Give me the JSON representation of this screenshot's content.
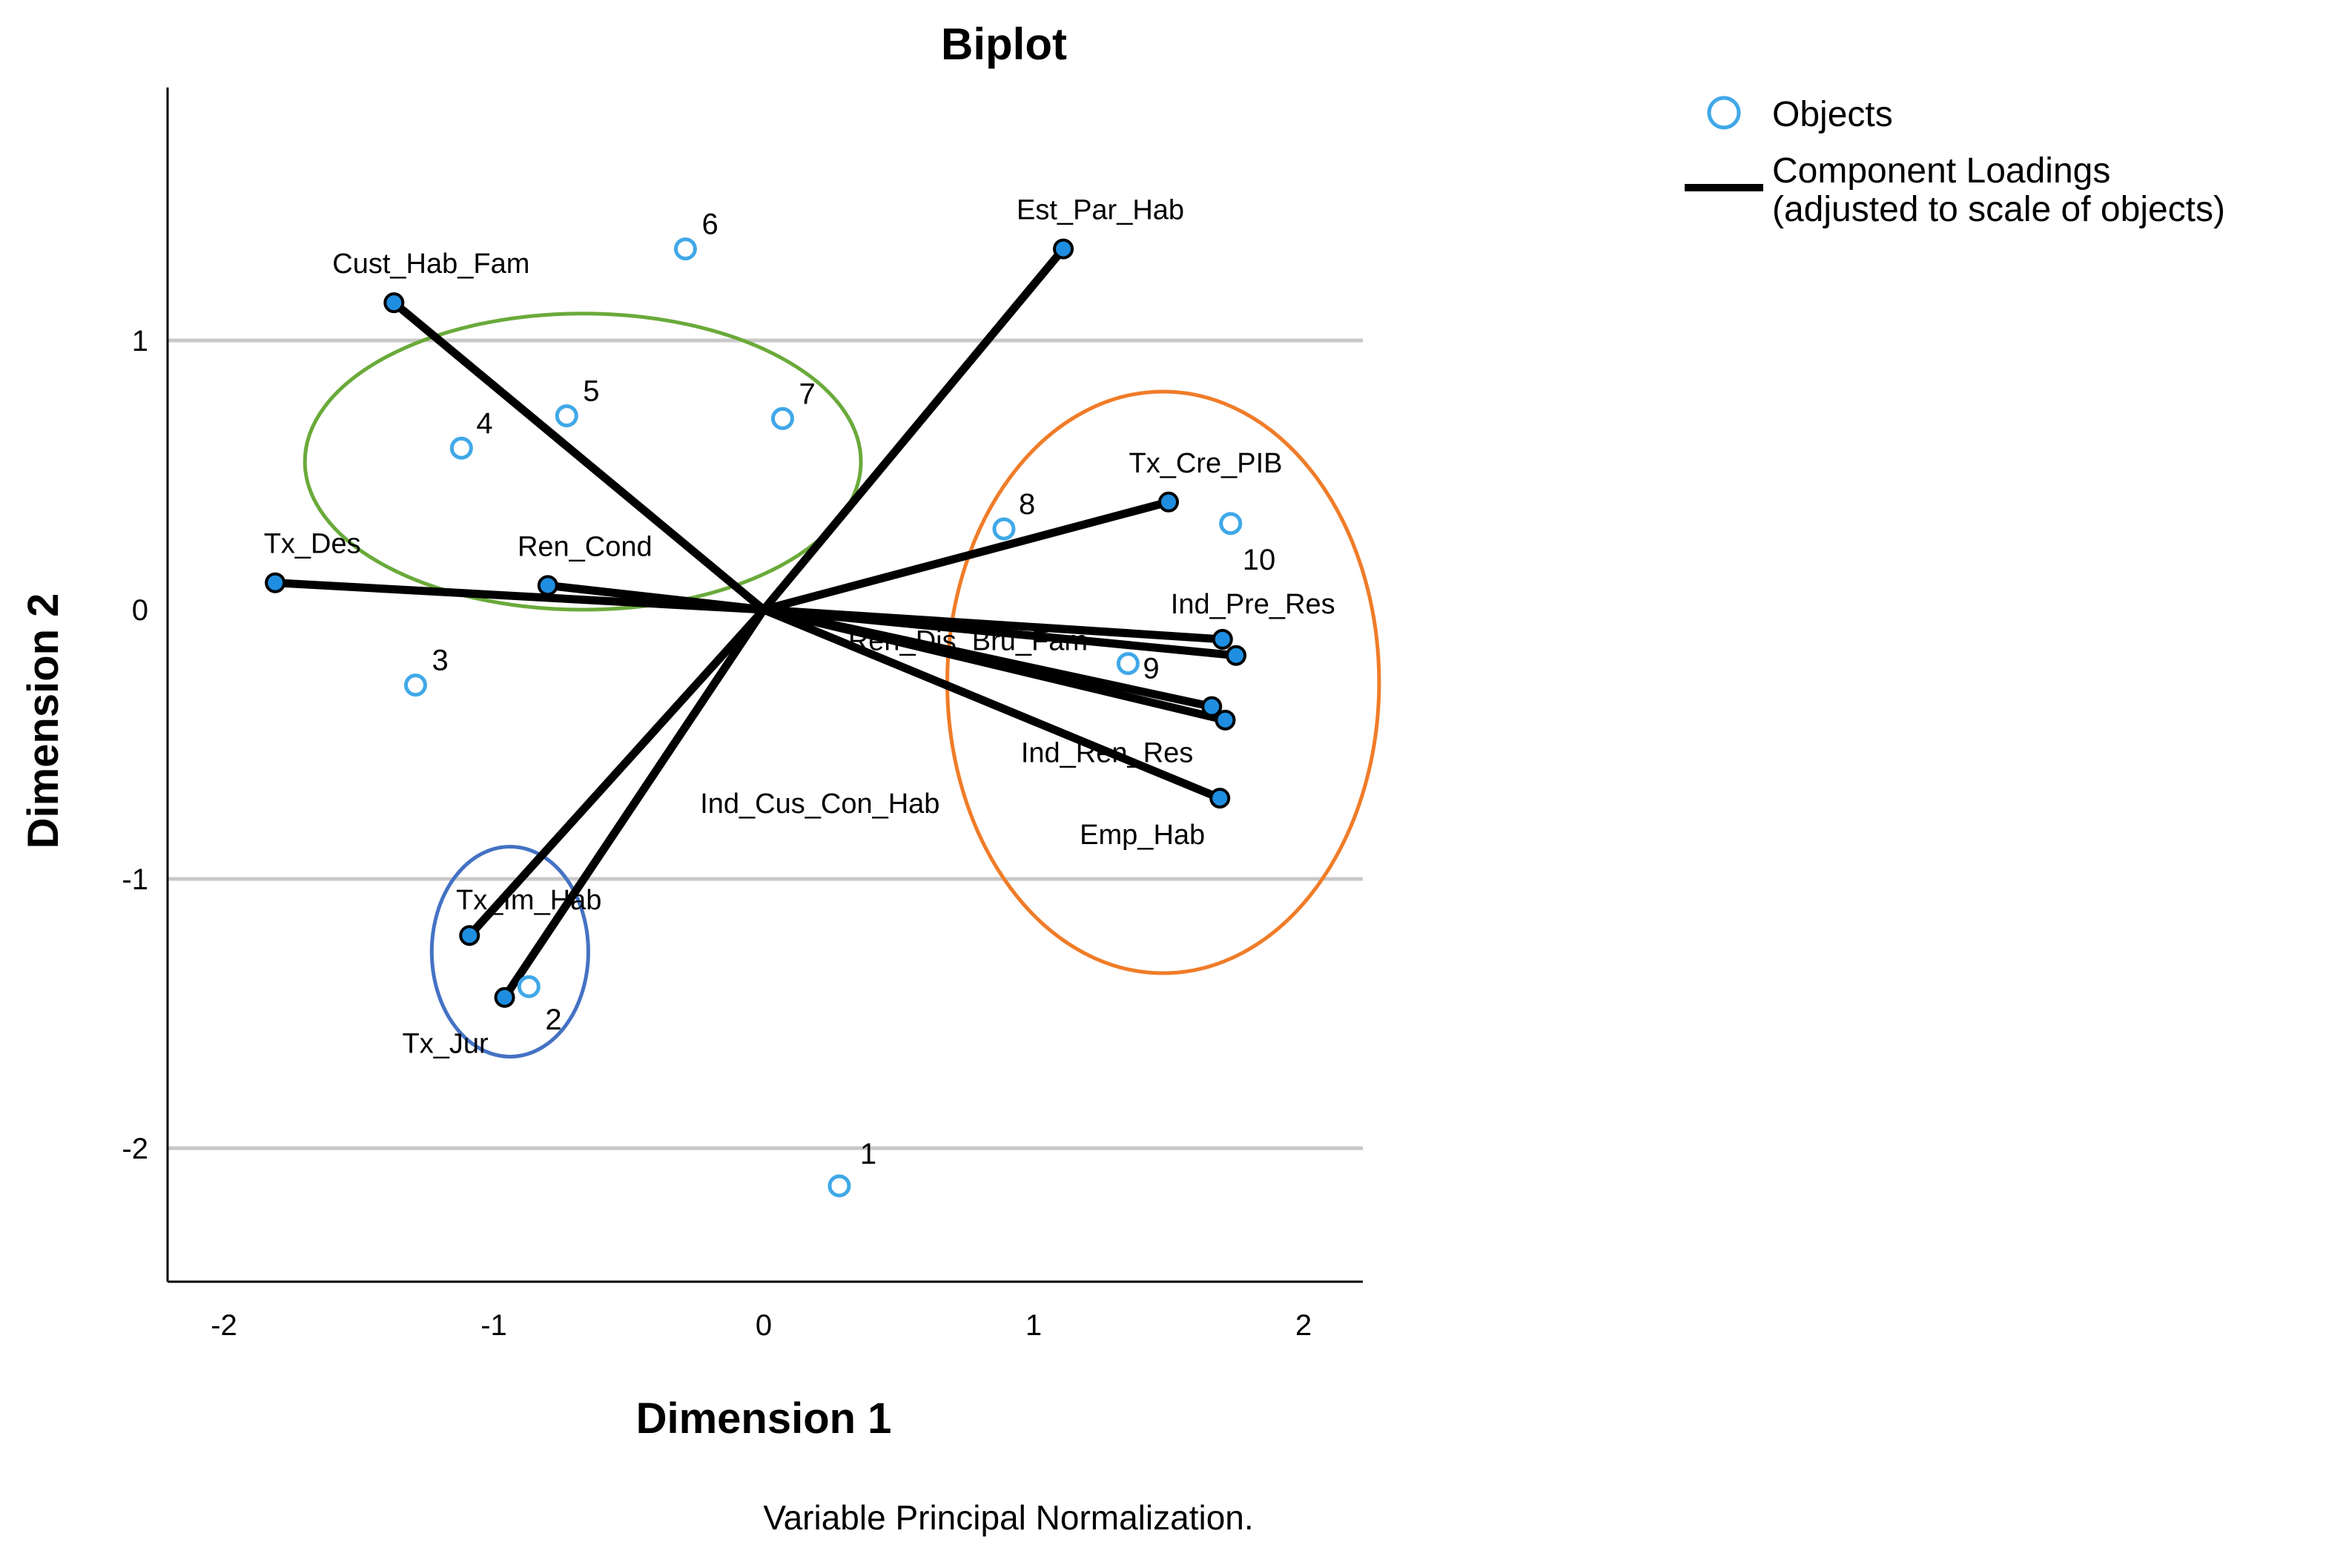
{
  "chart_data": {
    "type": "scatter",
    "subtype": "biplot",
    "title": "Biplot",
    "xlabel": "Dimension 1",
    "ylabel": "Dimension 2",
    "footnote": "Variable Principal Normalization.",
    "xlim": [
      -2.2,
      2.2
    ],
    "ylim": [
      -2.5,
      1.9
    ],
    "xticks": [
      -2,
      -1,
      0,
      1,
      2
    ],
    "yticks": [
      -2,
      -1,
      0,
      1
    ],
    "gridlines_y": [
      -2,
      -1,
      1
    ],
    "legend": {
      "position": "top-right",
      "items": [
        {
          "name": "Objects",
          "symbol": "circle"
        },
        {
          "name": "Component Loadings",
          "subtitle": "(adjusted to scale of objects)",
          "symbol": "line"
        }
      ]
    },
    "objects": [
      {
        "label": "1",
        "x": 0.28,
        "y": -2.14
      },
      {
        "label": "2",
        "x": -0.87,
        "y": -1.4
      },
      {
        "label": "3",
        "x": -1.29,
        "y": -0.28
      },
      {
        "label": "4",
        "x": -1.12,
        "y": 0.6
      },
      {
        "label": "5",
        "x": -0.73,
        "y": 0.72
      },
      {
        "label": "6",
        "x": -0.29,
        "y": 1.34
      },
      {
        "label": "7",
        "x": 0.07,
        "y": 0.71
      },
      {
        "label": "8",
        "x": 0.89,
        "y": 0.3
      },
      {
        "label": "9",
        "x": 1.35,
        "y": -0.2
      },
      {
        "label": "10",
        "x": 1.73,
        "y": 0.32
      }
    ],
    "loadings": [
      {
        "name": "Est_Par_Hab",
        "x": 1.11,
        "y": 1.34
      },
      {
        "name": "Cust_Hab_Fam",
        "x": -1.37,
        "y": 1.14
      },
      {
        "name": "Tx_Des",
        "x": -1.81,
        "y": 0.1
      },
      {
        "name": "Ren_Cond",
        "x": -0.8,
        "y": 0.09
      },
      {
        "name": "Tx_Cre_PIB",
        "x": 1.5,
        "y": 0.4
      },
      {
        "name": "Ind_Pre_Res",
        "x": 1.7,
        "y": -0.11
      },
      {
        "name": "Ren_Dis_Bru_Fam",
        "x": 1.75,
        "y": -0.17
      },
      {
        "name": "Ind_Ren_Res",
        "x": 1.66,
        "y": -0.36
      },
      {
        "name": "Ind_Cus_Con_Hab",
        "x": 1.71,
        "y": -0.41
      },
      {
        "name": "Emp_Hab",
        "x": 1.69,
        "y": -0.7
      },
      {
        "name": "Tx_Im_Hab",
        "x": -1.09,
        "y": -1.21
      },
      {
        "name": "Tx_Jur",
        "x": -0.96,
        "y": -1.44
      }
    ],
    "groups": [
      {
        "name": "green-group",
        "color": "#6aaa3a",
        "cx": -0.67,
        "cy": 0.55,
        "rx": 1.03,
        "ry": 0.55
      },
      {
        "name": "orange-group",
        "color": "#f07c28",
        "cx": 1.48,
        "cy": -0.27,
        "rx": 0.8,
        "ry": 1.08
      },
      {
        "name": "blue-group",
        "color": "#4472c4",
        "cx": -0.94,
        "cy": -1.27,
        "rx": 0.29,
        "ry": 0.39
      }
    ],
    "colors": {
      "object": "#40a8e8",
      "loading_line": "#000000",
      "loading_point": "#1f8ee0",
      "gridline": "#c8c8c8"
    }
  }
}
